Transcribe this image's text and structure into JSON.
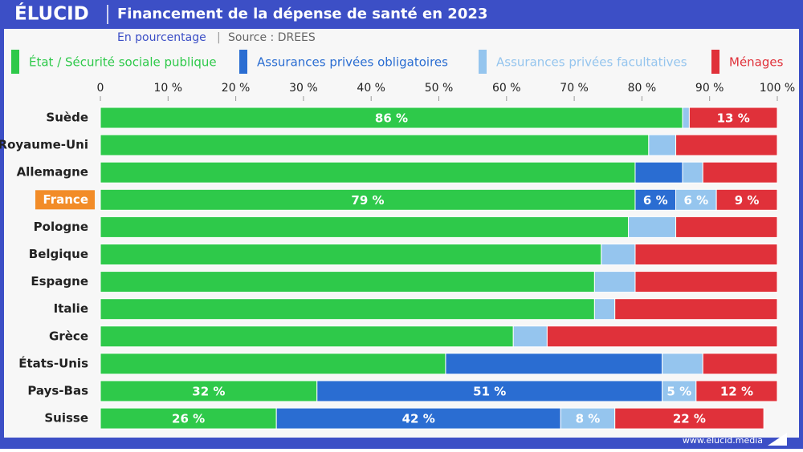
{
  "brand": "ÉLUCID",
  "footer": "www.elucid.media",
  "chart_data": {
    "type": "stacked-bar-horizontal",
    "title": "Financement de la dépense de santé en 2023",
    "subtitle": "En pourcentage",
    "source": "Source : DREES",
    "categories": [
      "Suède",
      "Royaume-Uni",
      "Allemagne",
      "France",
      "Pologne",
      "Belgique",
      "Espagne",
      "Italie",
      "Grèce",
      "États-Unis",
      "Pays-Bas",
      "Suisse"
    ],
    "highlight": 3,
    "highlight_color": "#f28c28",
    "series": [
      {
        "name": "État / Sécurité sociale publique",
        "color": "#2ec94a",
        "values": [
          86,
          81,
          79,
          79,
          78,
          74,
          73,
          73,
          61,
          51,
          32,
          26
        ],
        "value_labels": [
          "86 %",
          null,
          null,
          "79 %",
          null,
          null,
          null,
          null,
          null,
          null,
          "32 %",
          "26 %"
        ]
      },
      {
        "name": "Assurances privées obligatoires",
        "color": "#2a6dd2",
        "values": [
          0,
          0,
          7,
          6,
          0,
          0,
          0,
          0,
          0,
          32,
          51,
          42
        ],
        "value_labels": [
          null,
          null,
          null,
          "6 %",
          null,
          null,
          null,
          null,
          null,
          null,
          "51 %",
          "42 %"
        ]
      },
      {
        "name": "Assurances privées facultatives",
        "color": "#95c5ee",
        "values": [
          1,
          4,
          3,
          6,
          7,
          5,
          6,
          3,
          5,
          6,
          5,
          8
        ],
        "value_labels": [
          null,
          null,
          null,
          "6 %",
          null,
          null,
          null,
          null,
          null,
          null,
          "5 %",
          "8 %"
        ]
      },
      {
        "name": "Ménages",
        "color": "#e0313a",
        "values": [
          13,
          15,
          11,
          9,
          15,
          21,
          21,
          24,
          34,
          11,
          12,
          22
        ],
        "value_labels": [
          "13 %",
          null,
          null,
          "9 %",
          null,
          null,
          null,
          null,
          null,
          null,
          "12 %",
          "22 %"
        ]
      }
    ],
    "xlim": [
      0,
      100
    ],
    "xticks": [
      0,
      {
        "value": 10,
        "label": "10 %"
      },
      {
        "value": 20,
        "label": "20 %"
      },
      {
        "value": 30,
        "label": "30 %"
      },
      {
        "value": 40,
        "label": "40 %"
      },
      {
        "value": 50,
        "label": "50 %"
      },
      {
        "value": 60,
        "label": "60 %"
      },
      {
        "value": 70,
        "label": "70 %"
      },
      {
        "value": 80,
        "label": "80 %"
      },
      {
        "value": 90,
        "label": "90 %"
      },
      {
        "value": 100,
        "label": "100 %"
      }
    ]
  }
}
